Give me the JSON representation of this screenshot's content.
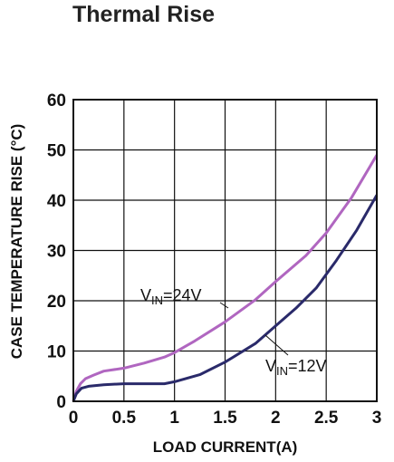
{
  "chart_data": {
    "type": "line",
    "title": "Thermal Rise",
    "xlabel": "LOAD CURRENT(A)",
    "ylabel": "CASE TEMPERATURE RISE (°C)",
    "xlim": [
      0,
      3
    ],
    "ylim": [
      0,
      60
    ],
    "xticks": [
      "0",
      "0.5",
      "1",
      "1.5",
      "2",
      "2.5",
      "3"
    ],
    "yticks": [
      "0",
      "10",
      "20",
      "30",
      "40",
      "50",
      "60"
    ],
    "grid": true,
    "series": [
      {
        "name": "VIN=24V",
        "label_main": "V",
        "label_sub": "IN",
        "label_rest": "=24V",
        "color": "#b066c0",
        "points": [
          [
            0,
            0
          ],
          [
            0.03,
            2
          ],
          [
            0.07,
            3.5
          ],
          [
            0.12,
            4.5
          ],
          [
            0.2,
            5.2
          ],
          [
            0.3,
            6
          ],
          [
            0.5,
            6.6
          ],
          [
            0.7,
            7.6
          ],
          [
            0.9,
            8.8
          ],
          [
            1.0,
            9.7
          ],
          [
            1.2,
            12
          ],
          [
            1.5,
            15.8
          ],
          [
            1.8,
            20.2
          ],
          [
            2.0,
            23.8
          ],
          [
            2.3,
            29
          ],
          [
            2.5,
            33.5
          ],
          [
            2.75,
            40.5
          ],
          [
            3.0,
            49
          ]
        ]
      },
      {
        "name": "VIN=12V",
        "label_main": "V",
        "label_sub": "IN",
        "label_rest": "=12V",
        "color": "#2a2a6a",
        "points": [
          [
            0,
            0
          ],
          [
            0.03,
            1.5
          ],
          [
            0.08,
            2.6
          ],
          [
            0.15,
            3
          ],
          [
            0.3,
            3.3
          ],
          [
            0.5,
            3.5
          ],
          [
            0.7,
            3.5
          ],
          [
            0.9,
            3.5
          ],
          [
            1.0,
            3.9
          ],
          [
            1.25,
            5.3
          ],
          [
            1.5,
            7.8
          ],
          [
            1.8,
            11.5
          ],
          [
            2.0,
            15
          ],
          [
            2.2,
            18.5
          ],
          [
            2.4,
            22.5
          ],
          [
            2.6,
            28
          ],
          [
            2.8,
            34
          ],
          [
            3.0,
            41
          ]
        ]
      }
    ]
  }
}
